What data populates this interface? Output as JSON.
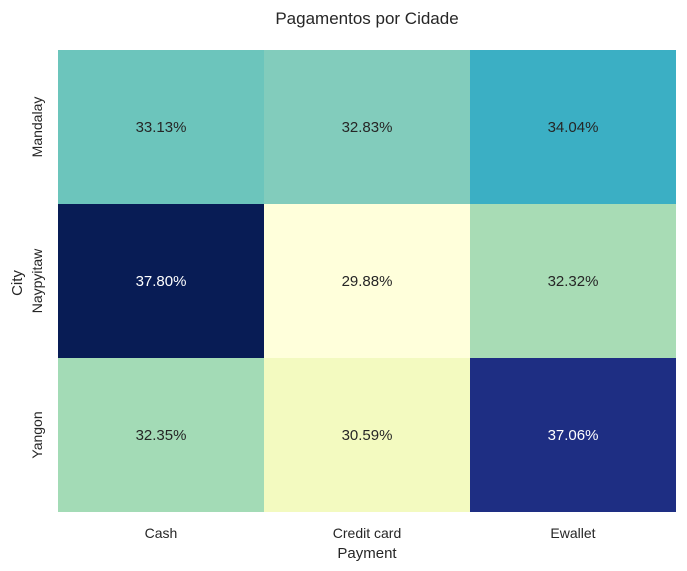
{
  "chart_data": {
    "type": "heatmap",
    "title": "Pagamentos por Cidade",
    "xlabel": "Payment",
    "ylabel": "City",
    "x_categories": [
      "Cash",
      "Credit card",
      "Ewallet"
    ],
    "y_categories": [
      "Mandalay",
      "Naypyitaw",
      "Yangon"
    ],
    "values": [
      [
        33.13,
        32.83,
        34.04
      ],
      [
        37.8,
        29.88,
        32.32
      ],
      [
        32.35,
        30.59,
        37.06
      ]
    ],
    "cell_labels": [
      [
        "33.13%",
        "32.83%",
        "34.04%"
      ],
      [
        "37.80%",
        "29.88%",
        "32.32%"
      ],
      [
        "32.35%",
        "30.59%",
        "37.06%"
      ]
    ],
    "colormap": "YlGnBu",
    "colorbar": false,
    "grid": false,
    "colors": {
      "Mandalay": [
        "#6cc5bc",
        "#82ccbc",
        "#3bafc4"
      ],
      "Naypyitaw": [
        "#081c55",
        "#ffffdb",
        "#a8dcb5"
      ],
      "Yangon": [
        "#a3dbb6",
        "#f3fac0",
        "#1e2e83"
      ]
    },
    "text_colors": {
      "dark": "#262626",
      "light": "#ffffff"
    }
  }
}
